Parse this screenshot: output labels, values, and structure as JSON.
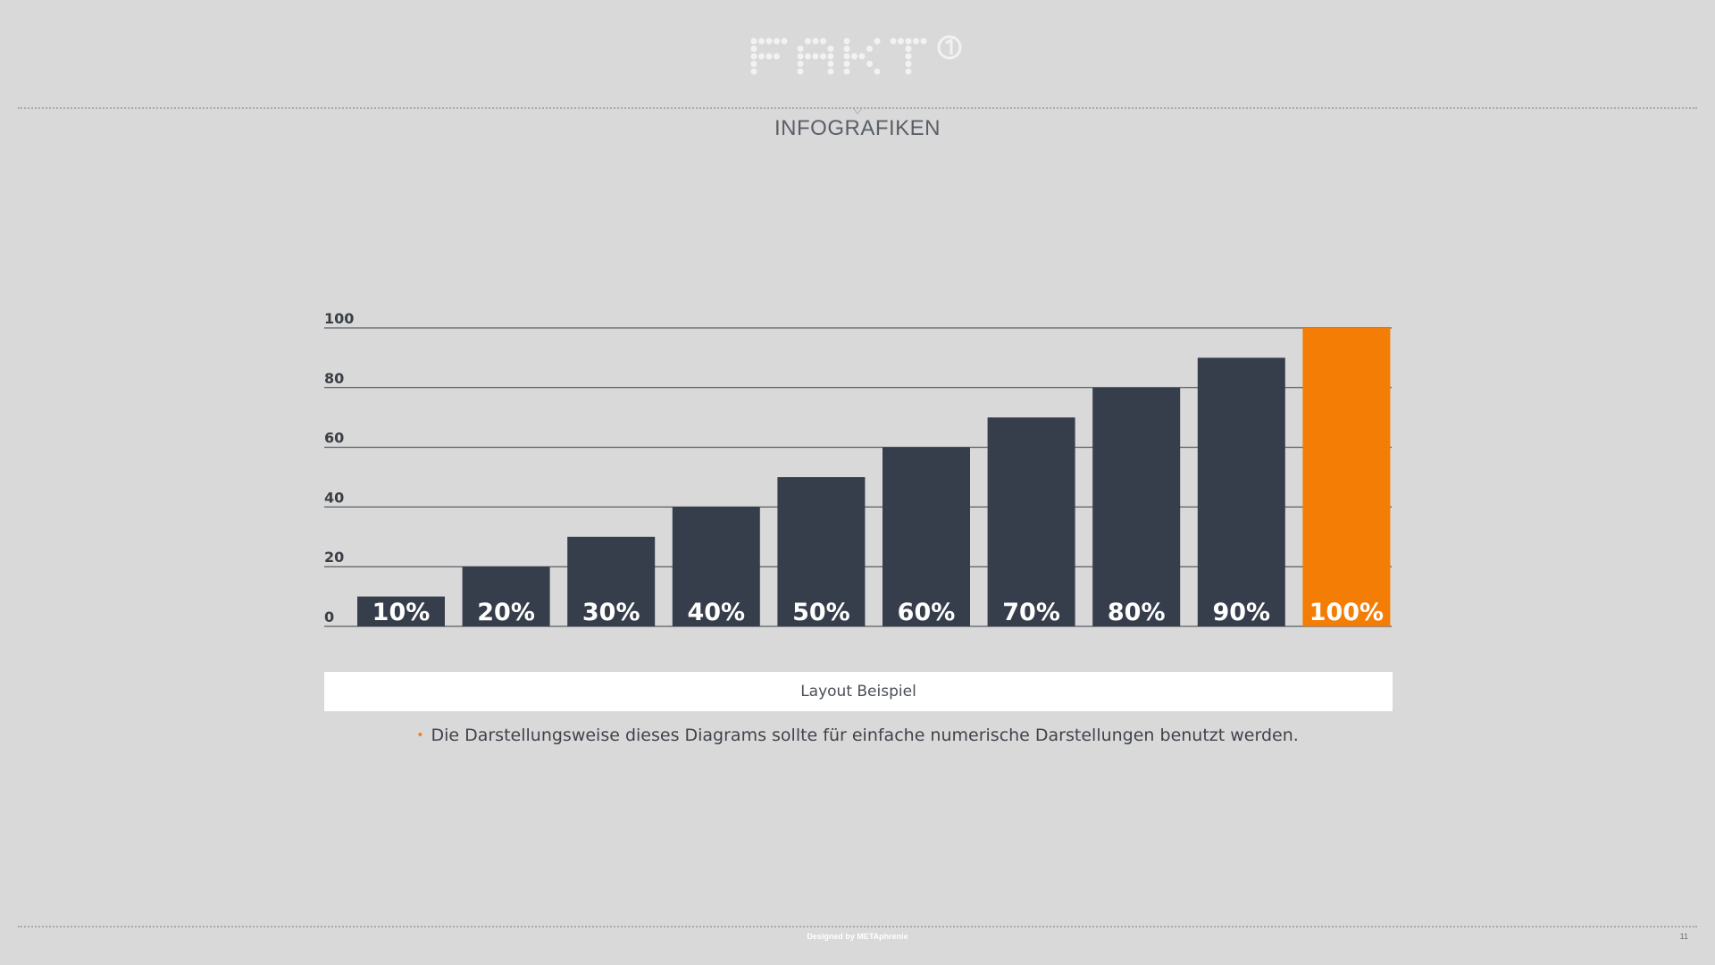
{
  "header": {
    "logo_text": "FAKT",
    "section_title": "INFOGRAFIKEN"
  },
  "chart_data": {
    "type": "bar",
    "categories": [
      "10%",
      "20%",
      "30%",
      "40%",
      "50%",
      "60%",
      "70%",
      "80%",
      "90%",
      "100%"
    ],
    "values": [
      10,
      20,
      30,
      40,
      50,
      60,
      70,
      80,
      90,
      100
    ],
    "data_labels": [
      "10%",
      "20%",
      "30%",
      "40%",
      "50%",
      "60%",
      "70%",
      "80%",
      "90%",
      "100%"
    ],
    "highlight_index": 9,
    "bar_color": "#353e4a",
    "highlight_color": "#f47d06",
    "ylim": [
      0,
      100
    ],
    "yticks": [
      0,
      20,
      40,
      60,
      80,
      100
    ],
    "grid": true,
    "title": "",
    "xlabel": "",
    "ylabel": ""
  },
  "caption": {
    "label": "Layout Beispiel"
  },
  "note": {
    "bullet": "•",
    "text": "Die Darstellungsweise dieses Diagrams sollte für einfache numerische Darstellungen benutzt werden."
  },
  "footer": {
    "credit": "Designed by METAphrenie",
    "page_number": "11"
  }
}
